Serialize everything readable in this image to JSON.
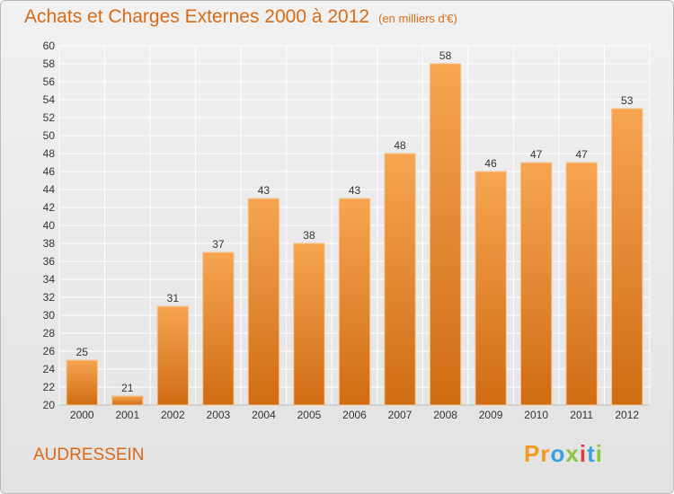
{
  "header": {
    "title": "Achats et Charges Externes 2000 à 2012",
    "subtitle": "(en milliers d'€)"
  },
  "footer": {
    "commune": "AUDRESSEIN",
    "logo_text": "Proxiti"
  },
  "colors": {
    "title": "#d96a16",
    "bar_light": "#f6a551",
    "bar_dark": "#d06c14",
    "grid": "#ffffff"
  },
  "chart_data": {
    "type": "bar",
    "title": "Achats et Charges Externes 2000 à 2012",
    "subtitle": "(en milliers d'€)",
    "categories": [
      "2000",
      "2001",
      "2002",
      "2003",
      "2004",
      "2005",
      "2006",
      "2007",
      "2008",
      "2009",
      "2010",
      "2011",
      "2012"
    ],
    "values": [
      25,
      21,
      31,
      37,
      43,
      38,
      43,
      48,
      58,
      46,
      47,
      47,
      53
    ],
    "ylim": [
      20,
      60
    ],
    "yticks": [
      20,
      22,
      24,
      26,
      28,
      30,
      32,
      34,
      36,
      38,
      40,
      42,
      44,
      46,
      48,
      50,
      52,
      54,
      56,
      58,
      60
    ],
    "grid": true,
    "data_labels": true
  }
}
